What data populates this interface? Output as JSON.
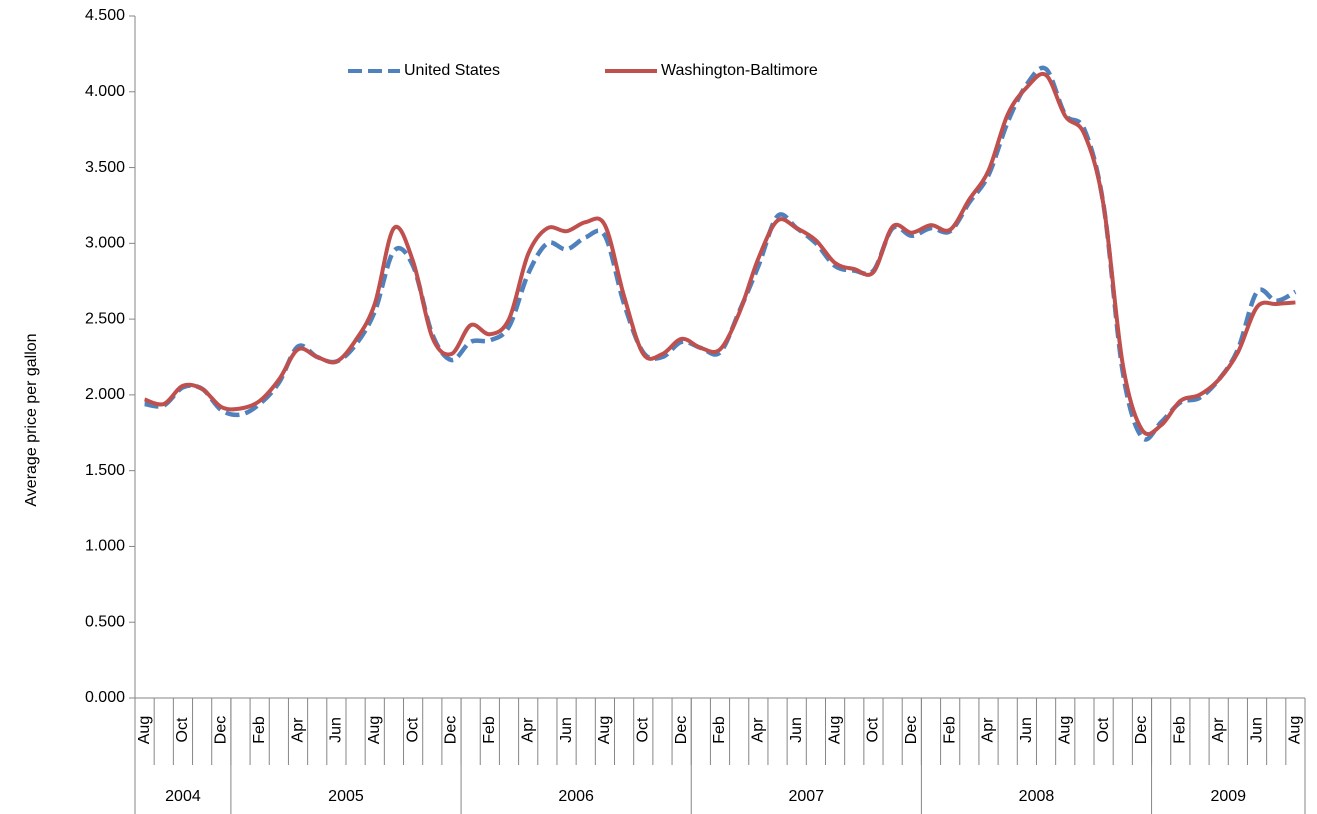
{
  "chart_data": {
    "type": "line",
    "y_label": "Average price per gallon",
    "categories": [
      "Aug",
      null,
      "Oct",
      null,
      "Dec",
      null,
      "Feb",
      null,
      "Apr",
      null,
      "Jun",
      null,
      "Aug",
      null,
      "Oct",
      null,
      "Dec",
      null,
      "Feb",
      null,
      "Apr",
      null,
      "Jun",
      null,
      "Aug",
      null,
      "Oct",
      null,
      "Dec",
      null,
      "Feb",
      null,
      "Apr",
      null,
      "Jun",
      null,
      "Aug",
      null,
      "Oct",
      null,
      "Dec",
      null,
      "Feb",
      null,
      "Apr",
      null,
      "Jun",
      null,
      "Aug",
      null,
      "Oct",
      null,
      "Dec",
      null,
      "Feb",
      null,
      "Apr",
      null,
      "Jun",
      null,
      "Aug"
    ],
    "year_groups": [
      {
        "label": "2004",
        "months": 5
      },
      {
        "label": "2005",
        "months": 12
      },
      {
        "label": "2006",
        "months": 12
      },
      {
        "label": "2007",
        "months": 12
      },
      {
        "label": "2008",
        "months": 12
      },
      {
        "label": "2009",
        "months": 8
      }
    ],
    "series": [
      {
        "name": "United States",
        "color": "#4f81bd",
        "dashed": true,
        "values": [
          1.94,
          1.93,
          2.05,
          2.04,
          1.9,
          1.87,
          1.94,
          2.08,
          2.32,
          2.25,
          2.22,
          2.33,
          2.55,
          2.95,
          2.85,
          2.4,
          2.23,
          2.35,
          2.36,
          2.45,
          2.8,
          3.0,
          2.96,
          3.04,
          3.05,
          2.6,
          2.28,
          2.25,
          2.35,
          2.31,
          2.28,
          2.55,
          2.85,
          3.18,
          3.1,
          3.0,
          2.85,
          2.82,
          2.82,
          3.1,
          3.05,
          3.1,
          3.08,
          3.27,
          3.45,
          3.8,
          4.05,
          4.15,
          3.85,
          3.75,
          3.25,
          2.15,
          1.72,
          1.82,
          1.95,
          1.98,
          2.1,
          2.3,
          2.68,
          2.62,
          2.68
        ]
      },
      {
        "name": "Washington-Baltimore",
        "color": "#c0504d",
        "dashed": false,
        "values": [
          1.97,
          1.94,
          2.06,
          2.04,
          1.92,
          1.91,
          1.96,
          2.1,
          2.3,
          2.25,
          2.22,
          2.36,
          2.6,
          3.1,
          2.88,
          2.38,
          2.27,
          2.46,
          2.4,
          2.5,
          2.93,
          3.1,
          3.08,
          3.14,
          3.12,
          2.65,
          2.27,
          2.27,
          2.37,
          2.31,
          2.3,
          2.54,
          2.9,
          3.15,
          3.1,
          3.02,
          2.87,
          2.83,
          2.81,
          3.11,
          3.07,
          3.12,
          3.09,
          3.29,
          3.48,
          3.85,
          4.03,
          4.11,
          3.84,
          3.72,
          3.25,
          2.2,
          1.77,
          1.8,
          1.96,
          2.0,
          2.1,
          2.28,
          2.58,
          2.6,
          2.61
        ]
      }
    ],
    "ylim": [
      0,
      4.5
    ],
    "yticks": [
      {
        "value": 0,
        "label": "0.000"
      },
      {
        "value": 0.5,
        "label": "0.500"
      },
      {
        "value": 1,
        "label": "1.000"
      },
      {
        "value": 1.5,
        "label": "1.500"
      },
      {
        "value": 2,
        "label": "2.000"
      },
      {
        "value": 2.5,
        "label": "2.500"
      },
      {
        "value": 3,
        "label": "3.000"
      },
      {
        "value": 3.5,
        "label": "3.500"
      },
      {
        "value": 4,
        "label": "4.000"
      },
      {
        "value": 4.5,
        "label": "4.500"
      }
    ],
    "grid": false,
    "legend": "top"
  }
}
